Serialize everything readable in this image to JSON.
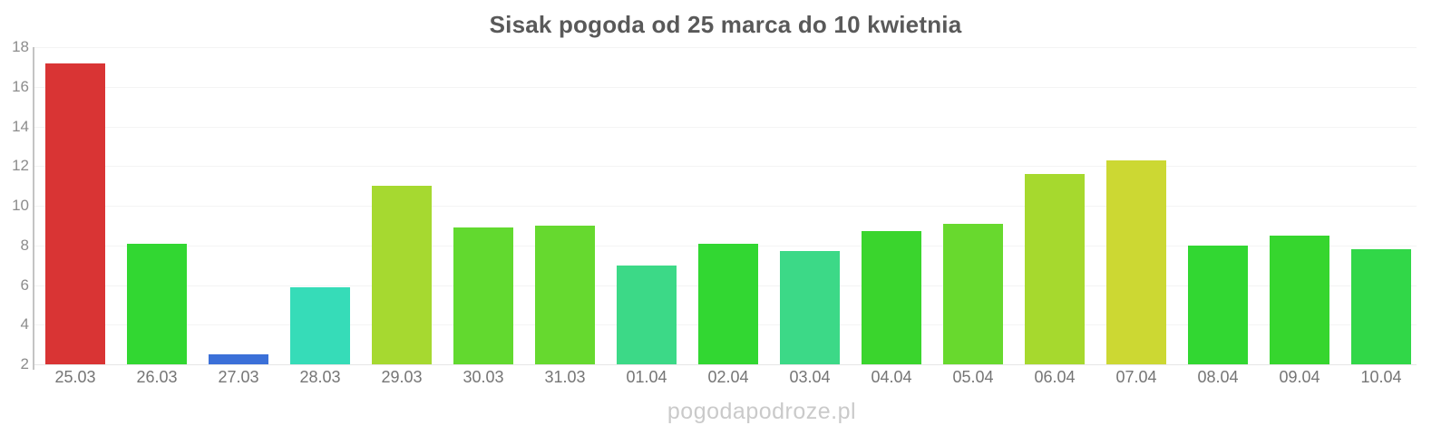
{
  "title": "Sisak pogoda od 25 marca do 10 kwietnia",
  "watermark": "pogodapodroze.pl",
  "chart_data": {
    "type": "bar",
    "title": "Sisak pogoda od 25 marca do 10 kwietnia",
    "categories": [
      "25.03",
      "26.03",
      "27.03",
      "28.03",
      "29.03",
      "30.03",
      "31.03",
      "01.04",
      "02.04",
      "03.04",
      "04.04",
      "05.04",
      "06.04",
      "07.04",
      "08.04",
      "09.04",
      "10.04"
    ],
    "values": [
      17.2,
      8.1,
      2.5,
      5.9,
      11.0,
      8.9,
      9.0,
      7.0,
      8.1,
      7.7,
      8.7,
      9.1,
      11.6,
      12.3,
      8.0,
      8.5,
      7.8
    ],
    "bar_colors": [
      "#d93434",
      "#32d732",
      "#3b70d8",
      "#36dcb8",
      "#a6d930",
      "#62d92f",
      "#66d92f",
      "#3cd987",
      "#32d732",
      "#3cd987",
      "#3ad52d",
      "#68d92e",
      "#a6d92e",
      "#ccd833",
      "#32d732",
      "#36d62e",
      "#31d748"
    ],
    "ylim": [
      2,
      18
    ],
    "yticks": [
      2,
      4,
      6,
      8,
      10,
      12,
      14,
      16,
      18
    ],
    "grid": true,
    "legend": "none",
    "xlabel": "",
    "ylabel": ""
  },
  "colors": {
    "background": "#ffffff",
    "title_text": "#595959",
    "y_label_text": "#8c8c8c",
    "x_label_text": "#757575",
    "watermark_text": "#cacaca",
    "axis_line": "#c4c4c4",
    "gridline": "#f4f4f4",
    "baseline": "#e6e6e6"
  }
}
